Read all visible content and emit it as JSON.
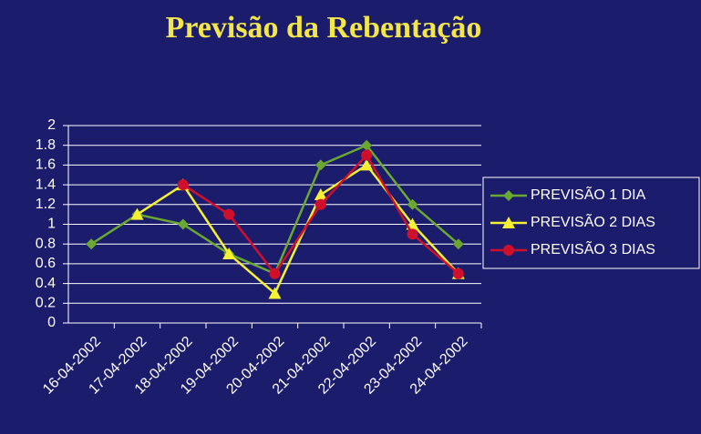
{
  "chart_data": {
    "type": "line",
    "title": "Previsão da Rebentação",
    "categories": [
      "16-04-2002",
      "17-04-2002",
      "18-04-2002",
      "19-04-2002",
      "20-04-2002",
      "21-04-2002",
      "22-04-2002",
      "23-04-2002",
      "24-04-2002"
    ],
    "series": [
      {
        "name": "PREVISÃO 1 DIA",
        "color": "#6aa832",
        "marker": "diamond",
        "values": [
          0.8,
          1.1,
          1.0,
          0.7,
          0.5,
          1.6,
          1.8,
          1.2,
          0.8
        ]
      },
      {
        "name": "PREVISÃO 2 DIAS",
        "color": "#f5f032",
        "marker": "triangle",
        "values": [
          null,
          1.1,
          1.4,
          0.7,
          0.3,
          1.3,
          1.6,
          1.0,
          0.5
        ]
      },
      {
        "name": "PREVISÃO 3 DIAS",
        "color": "#d0102a",
        "marker": "circle",
        "values": [
          null,
          null,
          1.4,
          1.1,
          0.5,
          1.2,
          1.7,
          0.9,
          0.5
        ]
      }
    ],
    "ylim": [
      0,
      2
    ],
    "yticks": [
      0,
      0.2,
      0.4,
      0.6,
      0.8,
      1,
      1.2,
      1.4,
      1.6,
      1.8,
      2
    ],
    "grid": true,
    "legend": "right"
  }
}
